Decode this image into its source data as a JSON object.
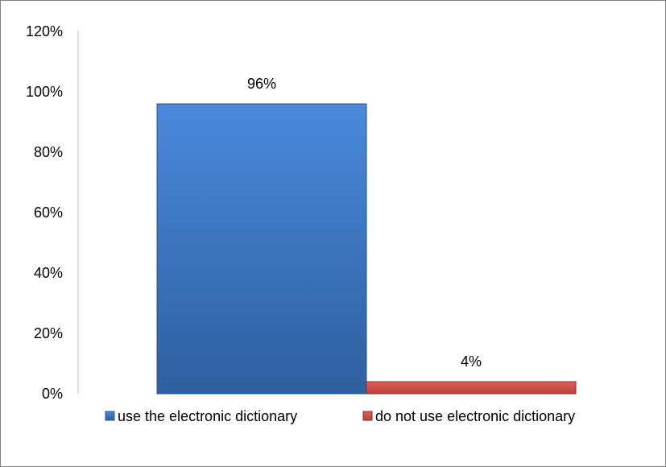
{
  "chart_data": {
    "type": "bar",
    "categories": [
      "use the electronic dictionary",
      "do not use electronic dictionary"
    ],
    "values": [
      96,
      4
    ],
    "data_labels": [
      "96%",
      "4%"
    ],
    "y_ticks": [
      "0%",
      "20%",
      "40%",
      "60%",
      "80%",
      "100%",
      "120%"
    ],
    "ylim": [
      0,
      120
    ],
    "y_unit": "%",
    "grid": false,
    "legend_position": "bottom",
    "legend": [
      {
        "label": "use the electronic dictionary",
        "color": "#3a74c4"
      },
      {
        "label": "do not use electronic dictionary",
        "color": "#c0504d"
      }
    ],
    "colors": {
      "blue_top": "#4a89dc",
      "blue_bottom": "#2f5f9e",
      "blue_edge": "#2a5187",
      "red_top": "#e0605a",
      "red_bottom": "#b9413d",
      "red_edge": "#8c2d2a"
    }
  }
}
